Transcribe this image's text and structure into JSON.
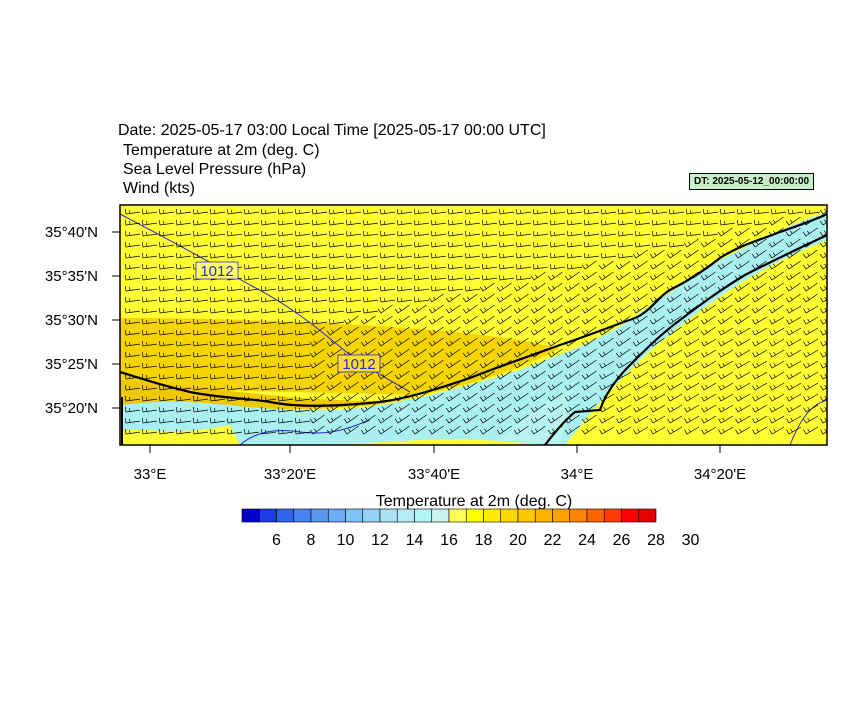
{
  "header": {
    "date_line": "Date: 2025-05-17  03:00 Local Time [2025-05-17  00:00 UTC]",
    "field_1": "Temperature at 2m   (deg. C)",
    "field_2": "Sea Level Pressure   (hPa)",
    "field_3": "Wind   (kts)",
    "dt_badge": "DT: 2025-05-12_00:00:00"
  },
  "map": {
    "lat_labels": [
      "35°40'N",
      "35°35'N",
      "35°30'N",
      "35°25'N",
      "35°20'N"
    ],
    "lon_labels": [
      "33°E",
      "33°20'E",
      "33°40'E",
      "34°E",
      "34°20'E"
    ],
    "isobar_labels": [
      "1012",
      "1012"
    ],
    "colors": {
      "warm": "#ffff33",
      "warmer": "#f5d400",
      "cool": "#aaf0f0",
      "isobar": "#2a2ad0",
      "coast": "#000000"
    }
  },
  "colorbar": {
    "title": "Temperature at 2m  (deg. C)",
    "tick_labels": [
      "6",
      "8",
      "10",
      "12",
      "14",
      "16",
      "18",
      "20",
      "22",
      "24",
      "26",
      "28",
      "30"
    ],
    "colors": [
      "#0000c8",
      "#1e3ce6",
      "#3264f0",
      "#4682f0",
      "#5a96f0",
      "#6eaaf5",
      "#82c3f5",
      "#96d2f5",
      "#aae1f5",
      "#b4ebf5",
      "#b4f5f5",
      "#c8f5f0",
      "#ffff55",
      "#ffff00",
      "#ffeb00",
      "#ffd700",
      "#ffc800",
      "#ffb400",
      "#ffa000",
      "#ff8200",
      "#ff6400",
      "#ff3c00",
      "#ff0000",
      "#e60000"
    ]
  }
}
